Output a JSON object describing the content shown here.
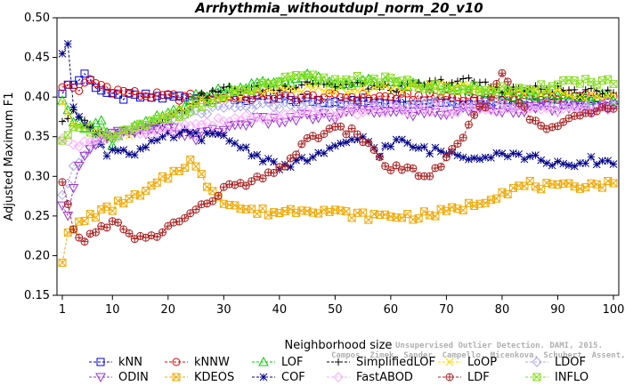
{
  "chart_data": {
    "type": "line",
    "title": "Arrhythmia_withoutdupl_norm_20_v10",
    "xlabel": "Neighborhood size",
    "ylabel": "Adjusted Maximum F1",
    "xlim": [
      1,
      100
    ],
    "ylim": [
      0.15,
      0.5
    ],
    "xticks": [
      1,
      10,
      20,
      30,
      40,
      50,
      60,
      70,
      80,
      90,
      100
    ],
    "yticks": [
      "0.15",
      "0.20",
      "0.25",
      "0.30",
      "0.35",
      "0.40",
      "0.45",
      "0.50"
    ],
    "grid": false,
    "legend_position": "bottom",
    "watermark": [
      "Campos, Zimek, Sander, Campello, Micenkova, Schubert, Assent, Houle",
      "Unsupervised Outlier Detection. DAMI, 2015."
    ],
    "series": [
      {
        "name": "kNN",
        "color": "#0000cc",
        "marker": "square",
        "anchors": [
          [
            1,
            0.4
          ],
          [
            2,
            0.42
          ],
          [
            3,
            0.415
          ],
          [
            5,
            0.43
          ],
          [
            6,
            0.42
          ],
          [
            8,
            0.41
          ],
          [
            10,
            0.4
          ],
          [
            15,
            0.4
          ],
          [
            25,
            0.4
          ],
          [
            40,
            0.397
          ],
          [
            60,
            0.395
          ],
          [
            80,
            0.394
          ],
          [
            100,
            0.393
          ]
        ]
      },
      {
        "name": "kNNW",
        "color": "#dd0000",
        "marker": "circle",
        "anchors": [
          [
            1,
            0.41
          ],
          [
            2,
            0.415
          ],
          [
            4,
            0.41
          ],
          [
            6,
            0.42
          ],
          [
            8,
            0.415
          ],
          [
            10,
            0.41
          ],
          [
            13,
            0.405
          ],
          [
            16,
            0.402
          ],
          [
            20,
            0.4
          ],
          [
            40,
            0.4
          ],
          [
            60,
            0.4
          ],
          [
            80,
            0.4
          ],
          [
            100,
            0.4
          ]
        ]
      },
      {
        "name": "LOF",
        "color": "#00cc00",
        "marker": "triangle-up",
        "anchors": [
          [
            1,
            0.4
          ],
          [
            3,
            0.37
          ],
          [
            5,
            0.36
          ],
          [
            8,
            0.37
          ],
          [
            10,
            0.34
          ],
          [
            13,
            0.36
          ],
          [
            16,
            0.365
          ],
          [
            20,
            0.38
          ],
          [
            25,
            0.4
          ],
          [
            30,
            0.41
          ],
          [
            35,
            0.415
          ],
          [
            40,
            0.42
          ],
          [
            45,
            0.425
          ],
          [
            50,
            0.415
          ],
          [
            55,
            0.42
          ],
          [
            60,
            0.415
          ],
          [
            65,
            0.415
          ],
          [
            70,
            0.41
          ],
          [
            75,
            0.41
          ],
          [
            80,
            0.405
          ],
          [
            85,
            0.4
          ],
          [
            90,
            0.4
          ],
          [
            95,
            0.4
          ],
          [
            100,
            0.4
          ]
        ]
      },
      {
        "name": "SimplifiedLOF",
        "color": "#000000",
        "marker": "plus",
        "anchors": [
          [
            1,
            0.37
          ],
          [
            3,
            0.38
          ],
          [
            6,
            0.36
          ],
          [
            9,
            0.35
          ],
          [
            12,
            0.355
          ],
          [
            15,
            0.36
          ],
          [
            18,
            0.37
          ],
          [
            22,
            0.38
          ],
          [
            26,
            0.4
          ],
          [
            30,
            0.41
          ],
          [
            35,
            0.41
          ],
          [
            40,
            0.41
          ],
          [
            45,
            0.42
          ],
          [
            50,
            0.415
          ],
          [
            55,
            0.415
          ],
          [
            60,
            0.41
          ],
          [
            65,
            0.415
          ],
          [
            70,
            0.42
          ],
          [
            75,
            0.42
          ],
          [
            80,
            0.41
          ],
          [
            85,
            0.41
          ],
          [
            90,
            0.41
          ],
          [
            95,
            0.405
          ],
          [
            100,
            0.41
          ]
        ]
      },
      {
        "name": "LoOP",
        "color": "#ffd700",
        "marker": "x",
        "anchors": [
          [
            1,
            0.39
          ],
          [
            3,
            0.37
          ],
          [
            6,
            0.36
          ],
          [
            10,
            0.35
          ],
          [
            15,
            0.36
          ],
          [
            20,
            0.375
          ],
          [
            25,
            0.39
          ],
          [
            30,
            0.4
          ],
          [
            35,
            0.405
          ],
          [
            40,
            0.41
          ],
          [
            45,
            0.41
          ],
          [
            50,
            0.41
          ],
          [
            55,
            0.41
          ],
          [
            60,
            0.41
          ],
          [
            70,
            0.415
          ],
          [
            80,
            0.41
          ],
          [
            90,
            0.405
          ],
          [
            100,
            0.4
          ]
        ]
      },
      {
        "name": "LDOF",
        "color": "#aaaaee",
        "marker": "diamond",
        "anchors": [
          [
            1,
            0.28
          ],
          [
            3,
            0.31
          ],
          [
            5,
            0.33
          ],
          [
            8,
            0.345
          ],
          [
            10,
            0.35
          ],
          [
            15,
            0.36
          ],
          [
            20,
            0.37
          ],
          [
            25,
            0.38
          ],
          [
            30,
            0.385
          ],
          [
            40,
            0.39
          ],
          [
            50,
            0.39
          ],
          [
            60,
            0.39
          ],
          [
            70,
            0.39
          ],
          [
            80,
            0.39
          ],
          [
            90,
            0.39
          ],
          [
            100,
            0.39
          ]
        ]
      },
      {
        "name": "ODIN",
        "color": "#9933cc",
        "marker": "triangle-down",
        "anchors": [
          [
            1,
            0.26
          ],
          [
            2,
            0.255
          ],
          [
            3,
            0.29
          ],
          [
            5,
            0.33
          ],
          [
            8,
            0.35
          ],
          [
            12,
            0.355
          ],
          [
            16,
            0.355
          ],
          [
            20,
            0.36
          ],
          [
            25,
            0.35
          ],
          [
            30,
            0.36
          ],
          [
            35,
            0.37
          ],
          [
            40,
            0.37
          ],
          [
            45,
            0.375
          ],
          [
            50,
            0.375
          ],
          [
            55,
            0.385
          ],
          [
            60,
            0.38
          ],
          [
            65,
            0.38
          ],
          [
            70,
            0.38
          ],
          [
            75,
            0.385
          ],
          [
            80,
            0.385
          ],
          [
            90,
            0.385
          ],
          [
            100,
            0.385
          ]
        ]
      },
      {
        "name": "KDEOS",
        "color": "#f0a800",
        "marker": "square-x",
        "anchors": [
          [
            1,
            0.195
          ],
          [
            2,
            0.225
          ],
          [
            4,
            0.24
          ],
          [
            6,
            0.25
          ],
          [
            8,
            0.255
          ],
          [
            10,
            0.26
          ],
          [
            12,
            0.27
          ],
          [
            15,
            0.275
          ],
          [
            18,
            0.29
          ],
          [
            20,
            0.3
          ],
          [
            22,
            0.31
          ],
          [
            24,
            0.32
          ],
          [
            25,
            0.31
          ],
          [
            27,
            0.29
          ],
          [
            30,
            0.27
          ],
          [
            33,
            0.26
          ],
          [
            36,
            0.255
          ],
          [
            40,
            0.255
          ],
          [
            45,
            0.26
          ],
          [
            50,
            0.255
          ],
          [
            55,
            0.25
          ],
          [
            60,
            0.25
          ],
          [
            65,
            0.25
          ],
          [
            70,
            0.255
          ],
          [
            75,
            0.265
          ],
          [
            80,
            0.28
          ],
          [
            85,
            0.29
          ],
          [
            90,
            0.285
          ],
          [
            95,
            0.29
          ],
          [
            100,
            0.29
          ]
        ]
      },
      {
        "name": "COF",
        "color": "#000088",
        "marker": "asterisk",
        "anchors": [
          [
            1,
            0.45
          ],
          [
            2,
            0.47
          ],
          [
            3,
            0.39
          ],
          [
            5,
            0.37
          ],
          [
            7,
            0.35
          ],
          [
            9,
            0.33
          ],
          [
            11,
            0.335
          ],
          [
            14,
            0.33
          ],
          [
            17,
            0.34
          ],
          [
            20,
            0.35
          ],
          [
            23,
            0.355
          ],
          [
            26,
            0.35
          ],
          [
            30,
            0.35
          ],
          [
            35,
            0.33
          ],
          [
            38,
            0.32
          ],
          [
            41,
            0.31
          ],
          [
            44,
            0.32
          ],
          [
            48,
            0.33
          ],
          [
            52,
            0.34
          ],
          [
            55,
            0.35
          ],
          [
            58,
            0.33
          ],
          [
            61,
            0.345
          ],
          [
            65,
            0.335
          ],
          [
            70,
            0.33
          ],
          [
            75,
            0.325
          ],
          [
            80,
            0.33
          ],
          [
            84,
            0.325
          ],
          [
            88,
            0.32
          ],
          [
            92,
            0.31
          ],
          [
            96,
            0.32
          ],
          [
            100,
            0.318
          ]
        ]
      },
      {
        "name": "FastABOD",
        "color": "#ffaaff",
        "marker": "diamond",
        "anchors": [
          [
            1,
            0.35
          ],
          [
            3,
            0.34
          ],
          [
            6,
            0.345
          ],
          [
            10,
            0.35
          ],
          [
            15,
            0.355
          ],
          [
            20,
            0.36
          ],
          [
            25,
            0.365
          ],
          [
            30,
            0.37
          ],
          [
            40,
            0.375
          ],
          [
            50,
            0.38
          ],
          [
            60,
            0.385
          ],
          [
            70,
            0.385
          ],
          [
            80,
            0.385
          ],
          [
            90,
            0.385
          ],
          [
            100,
            0.385
          ]
        ]
      },
      {
        "name": "LDF",
        "color": "#aa2222",
        "marker": "circle-plus",
        "anchors": [
          [
            1,
            0.29
          ],
          [
            3,
            0.23
          ],
          [
            5,
            0.22
          ],
          [
            8,
            0.235
          ],
          [
            10,
            0.245
          ],
          [
            13,
            0.225
          ],
          [
            16,
            0.22
          ],
          [
            19,
            0.23
          ],
          [
            22,
            0.245
          ],
          [
            26,
            0.26
          ],
          [
            30,
            0.285
          ],
          [
            34,
            0.29
          ],
          [
            38,
            0.3
          ],
          [
            40,
            0.31
          ],
          [
            43,
            0.33
          ],
          [
            46,
            0.35
          ],
          [
            50,
            0.36
          ],
          [
            54,
            0.355
          ],
          [
            57,
            0.33
          ],
          [
            60,
            0.31
          ],
          [
            63,
            0.31
          ],
          [
            66,
            0.3
          ],
          [
            69,
            0.31
          ],
          [
            72,
            0.34
          ],
          [
            75,
            0.375
          ],
          [
            78,
            0.4
          ],
          [
            80,
            0.43
          ],
          [
            82,
            0.41
          ],
          [
            85,
            0.37
          ],
          [
            88,
            0.36
          ],
          [
            92,
            0.37
          ],
          [
            95,
            0.38
          ],
          [
            98,
            0.39
          ],
          [
            100,
            0.39
          ]
        ]
      },
      {
        "name": "INFLO",
        "color": "#88dd22",
        "marker": "square-x",
        "anchors": [
          [
            1,
            0.35
          ],
          [
            3,
            0.36
          ],
          [
            6,
            0.355
          ],
          [
            10,
            0.35
          ],
          [
            14,
            0.36
          ],
          [
            18,
            0.37
          ],
          [
            22,
            0.38
          ],
          [
            26,
            0.39
          ],
          [
            30,
            0.4
          ],
          [
            35,
            0.41
          ],
          [
            40,
            0.42
          ],
          [
            45,
            0.425
          ],
          [
            50,
            0.42
          ],
          [
            55,
            0.425
          ],
          [
            60,
            0.42
          ],
          [
            65,
            0.415
          ],
          [
            70,
            0.41
          ],
          [
            75,
            0.41
          ],
          [
            80,
            0.41
          ],
          [
            85,
            0.405
          ],
          [
            90,
            0.42
          ],
          [
            95,
            0.42
          ],
          [
            100,
            0.42
          ]
        ]
      }
    ]
  }
}
